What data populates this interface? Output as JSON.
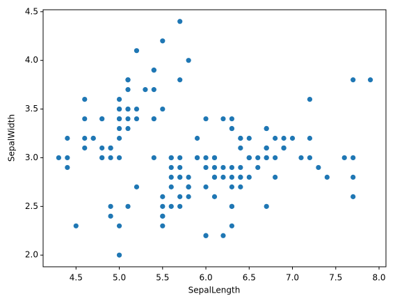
{
  "chart_data": {
    "type": "scatter",
    "x_label": "SepalLength",
    "y_label": "SepalWidth",
    "color": "#1f77b4",
    "x": [
      5.1,
      4.9,
      4.7,
      4.6,
      5.0,
      5.4,
      4.6,
      5.0,
      4.4,
      4.9,
      5.4,
      4.8,
      4.8,
      4.3,
      5.8,
      5.7,
      5.4,
      5.1,
      5.7,
      5.1,
      5.4,
      5.1,
      4.6,
      5.1,
      4.8,
      5.0,
      5.0,
      5.2,
      5.2,
      4.7,
      4.8,
      5.4,
      5.2,
      5.5,
      4.9,
      5.0,
      5.5,
      4.9,
      4.4,
      5.1,
      5.0,
      4.5,
      4.4,
      5.0,
      5.1,
      4.8,
      5.1,
      4.6,
      5.3,
      5.0,
      7.0,
      6.4,
      6.9,
      5.5,
      6.5,
      5.7,
      6.3,
      4.9,
      6.6,
      5.2,
      5.0,
      5.9,
      6.0,
      6.1,
      5.6,
      6.7,
      5.6,
      5.8,
      6.2,
      5.6,
      5.9,
      6.1,
      6.3,
      6.1,
      6.4,
      6.6,
      6.8,
      6.7,
      6.0,
      5.7,
      5.5,
      5.5,
      5.8,
      6.0,
      5.4,
      6.0,
      6.7,
      6.3,
      5.6,
      5.5,
      5.5,
      6.1,
      5.8,
      5.0,
      5.6,
      5.7,
      5.7,
      6.2,
      5.1,
      5.7,
      6.3,
      5.8,
      7.1,
      6.3,
      6.5,
      7.6,
      4.9,
      7.3,
      6.7,
      7.2,
      6.5,
      6.4,
      6.8,
      5.7,
      5.8,
      6.4,
      6.5,
      7.7,
      7.7,
      6.0,
      6.9,
      5.6,
      7.7,
      6.3,
      6.7,
      7.2,
      6.2,
      6.1,
      6.4,
      7.2,
      7.4,
      7.9,
      6.4,
      6.3,
      6.1,
      7.7,
      6.3,
      6.4,
      6.0,
      6.9,
      6.7,
      6.9,
      5.8,
      6.8,
      6.7,
      6.7,
      6.3,
      6.5,
      6.2,
      5.9
    ],
    "y": [
      3.5,
      3.0,
      3.2,
      3.1,
      3.6,
      3.9,
      3.4,
      3.4,
      2.9,
      3.1,
      3.7,
      3.4,
      3.0,
      3.0,
      4.0,
      4.4,
      3.9,
      3.5,
      3.8,
      3.8,
      3.4,
      3.7,
      3.6,
      3.3,
      3.4,
      3.0,
      3.4,
      3.5,
      3.4,
      3.2,
      3.1,
      3.4,
      4.1,
      4.2,
      3.1,
      3.2,
      3.5,
      3.1,
      3.0,
      3.4,
      3.5,
      2.3,
      3.2,
      3.5,
      3.8,
      3.0,
      3.8,
      3.2,
      3.7,
      3.3,
      3.2,
      3.2,
      3.1,
      2.3,
      2.8,
      2.8,
      3.3,
      2.4,
      2.9,
      2.7,
      2.0,
      3.0,
      2.2,
      2.9,
      2.9,
      3.1,
      3.0,
      2.7,
      2.2,
      2.5,
      3.2,
      2.8,
      2.5,
      2.8,
      2.9,
      3.0,
      2.8,
      3.0,
      2.9,
      2.6,
      2.4,
      2.4,
      2.7,
      2.7,
      3.0,
      3.4,
      3.1,
      2.3,
      3.0,
      2.5,
      2.6,
      3.0,
      2.6,
      2.3,
      2.7,
      3.0,
      2.9,
      2.9,
      2.5,
      2.8,
      3.3,
      2.7,
      3.0,
      2.9,
      3.0,
      3.0,
      2.5,
      2.9,
      2.5,
      3.6,
      3.2,
      2.7,
      3.0,
      2.5,
      2.8,
      3.2,
      3.0,
      3.8,
      2.6,
      2.2,
      3.2,
      2.8,
      2.8,
      2.7,
      3.3,
      3.2,
      2.8,
      3.0,
      2.8,
      3.0,
      2.8,
      3.8,
      2.8,
      2.8,
      2.6,
      3.0,
      3.4,
      3.1,
      3.0,
      3.1,
      3.1,
      3.1,
      2.7,
      3.2,
      3.3,
      3.0,
      2.5,
      3.0,
      3.4,
      3.0
    ],
    "xlim": [
      4.12,
      8.08
    ],
    "ylim": [
      1.88,
      4.52
    ],
    "xticks": [
      4.5,
      {
        "value": 5.0,
        "label": "5.0"
      },
      5.5,
      {
        "value": 6.0,
        "label": "6.0"
      },
      6.5,
      {
        "value": 7.0,
        "label": "7.0"
      },
      7.5,
      {
        "value": 8.0,
        "label": "8.0"
      }
    ],
    "yticks": [
      {
        "value": 2.0,
        "label": "2.0"
      },
      2.5,
      {
        "value": 3.0,
        "label": "3.0"
      },
      3.5,
      {
        "value": 4.0,
        "label": "4.0"
      },
      4.5
    ]
  }
}
